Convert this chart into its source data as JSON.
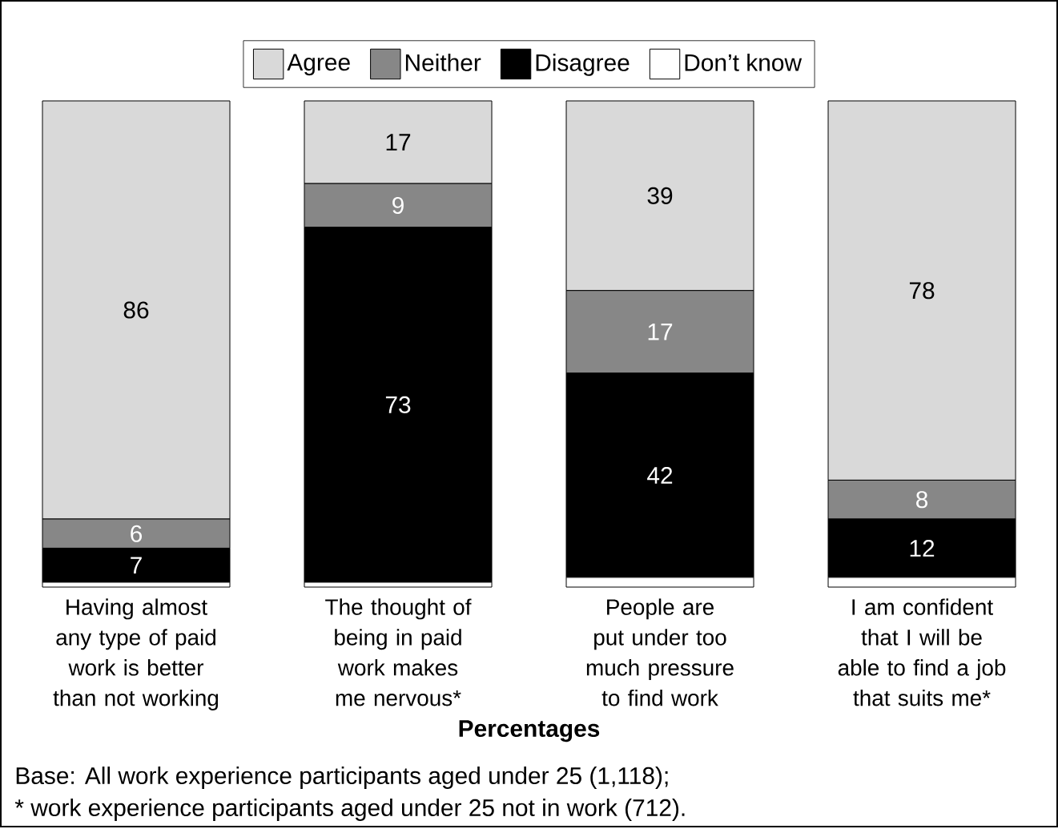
{
  "chart_data": {
    "type": "bar",
    "stacked": true,
    "xlabel": "Percentages",
    "categories": [
      "Having almost any type of paid work is better than not working",
      "The thought of being in paid work makes me nervous*",
      "People are put under too much pressure to find work",
      "I am confident that I will be able to find a job that suits me*"
    ],
    "series": [
      {
        "name": "Don’t know",
        "color": "#ffffff",
        "values": [
          1,
          1,
          2,
          2
        ]
      },
      {
        "name": "Disagree",
        "color": "#000000",
        "values": [
          7,
          73,
          42,
          12
        ],
        "value_labels": [
          "7",
          "73",
          "42",
          "12"
        ]
      },
      {
        "name": "Neither",
        "color": "#878787",
        "values": [
          6,
          9,
          17,
          8
        ],
        "value_labels": [
          "6",
          "9",
          "17",
          "8"
        ]
      },
      {
        "name": "Agree",
        "color": "#d9d9d9",
        "values": [
          86,
          17,
          39,
          78
        ],
        "value_labels": [
          "86",
          "17",
          "39",
          "78"
        ]
      }
    ],
    "ylim": [
      0,
      100
    ],
    "tick_labels": "x",
    "legend": "top",
    "annotations": [
      "Base: All work experience participants aged under 25 (1,118);",
      "* work experience participants aged under 25 not in work (712)."
    ]
  }
}
